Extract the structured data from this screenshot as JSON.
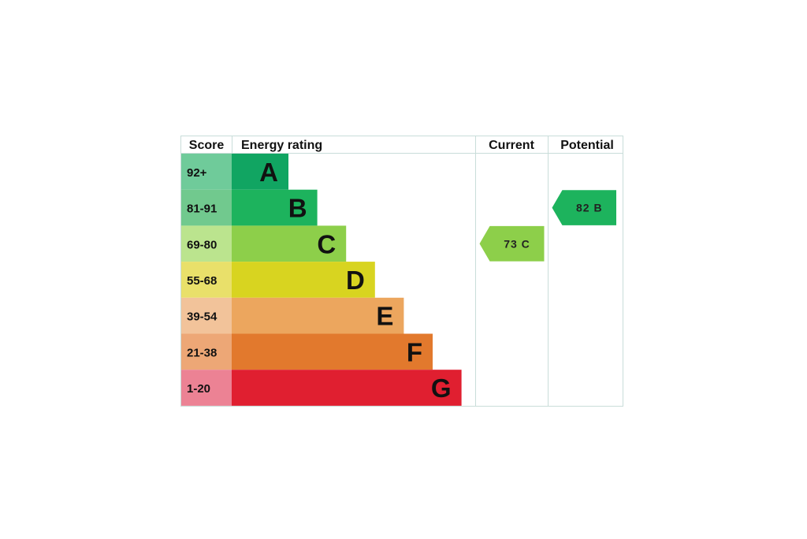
{
  "chart_data": {
    "type": "bar",
    "headers": {
      "score": "Score",
      "rating": "Energy rating",
      "current": "Current",
      "potential": "Potential"
    },
    "bands": [
      {
        "letter": "A",
        "score": "92+",
        "bar_color": "#11a562",
        "score_color": "#6fcb9a"
      },
      {
        "letter": "B",
        "score": "81-91",
        "bar_color": "#1db35d",
        "score_color": "#71c98e"
      },
      {
        "letter": "C",
        "score": "69-80",
        "bar_color": "#8dcf4a",
        "score_color": "#bbe48e"
      },
      {
        "letter": "D",
        "score": "55-68",
        "bar_color": "#d8d420",
        "score_color": "#e9e06a"
      },
      {
        "letter": "E",
        "score": "39-54",
        "bar_color": "#eca65e",
        "score_color": "#f2c39a"
      },
      {
        "letter": "F",
        "score": "21-38",
        "bar_color": "#e2792d",
        "score_color": "#eda776"
      },
      {
        "letter": "G",
        "score": "1-20",
        "bar_color": "#e01f30",
        "score_color": "#ec8294"
      }
    ],
    "current": {
      "value": 73,
      "letter": "C",
      "label": "73 C",
      "color": "#8dcf4a"
    },
    "potential": {
      "value": 82,
      "letter": "B",
      "label": "82 B",
      "color": "#1db35d"
    }
  }
}
